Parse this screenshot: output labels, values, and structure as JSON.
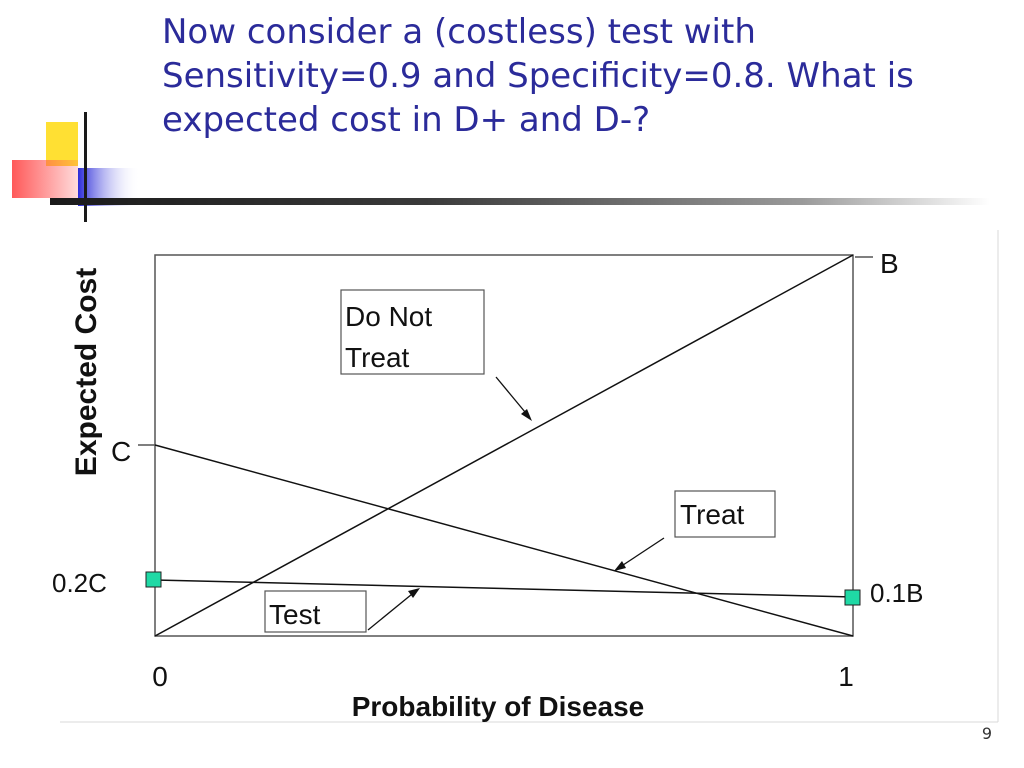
{
  "slide": {
    "title": "Now consider a (costless) test with Sensitivity=0.9 and Specificity=0.8. What is expected cost in D+ and D-?",
    "page_number": "9"
  },
  "chart_data": {
    "type": "line",
    "xlabel": "Probability of Disease",
    "ylabel": "Expected Cost",
    "x_ticks": [
      "0",
      "1"
    ],
    "point_labels": {
      "b": "B",
      "c": "C",
      "test_left": "0.2C",
      "test_right": "0.1B"
    },
    "series": [
      {
        "name": "Do Not Treat",
        "start_label": "0",
        "end_label": "B"
      },
      {
        "name": "Treat",
        "start_label": "C",
        "end_label": "0"
      },
      {
        "name": "Test",
        "start_label": "0.2C",
        "end_label": "0.1B"
      }
    ],
    "annotations": {
      "do_not_treat_line1": "Do Not",
      "do_not_treat_line2": "Treat",
      "treat": "Treat",
      "test": "Test"
    },
    "colors": {
      "marker_fill": "#1fd9a5",
      "title": "#2b2b9a"
    }
  }
}
